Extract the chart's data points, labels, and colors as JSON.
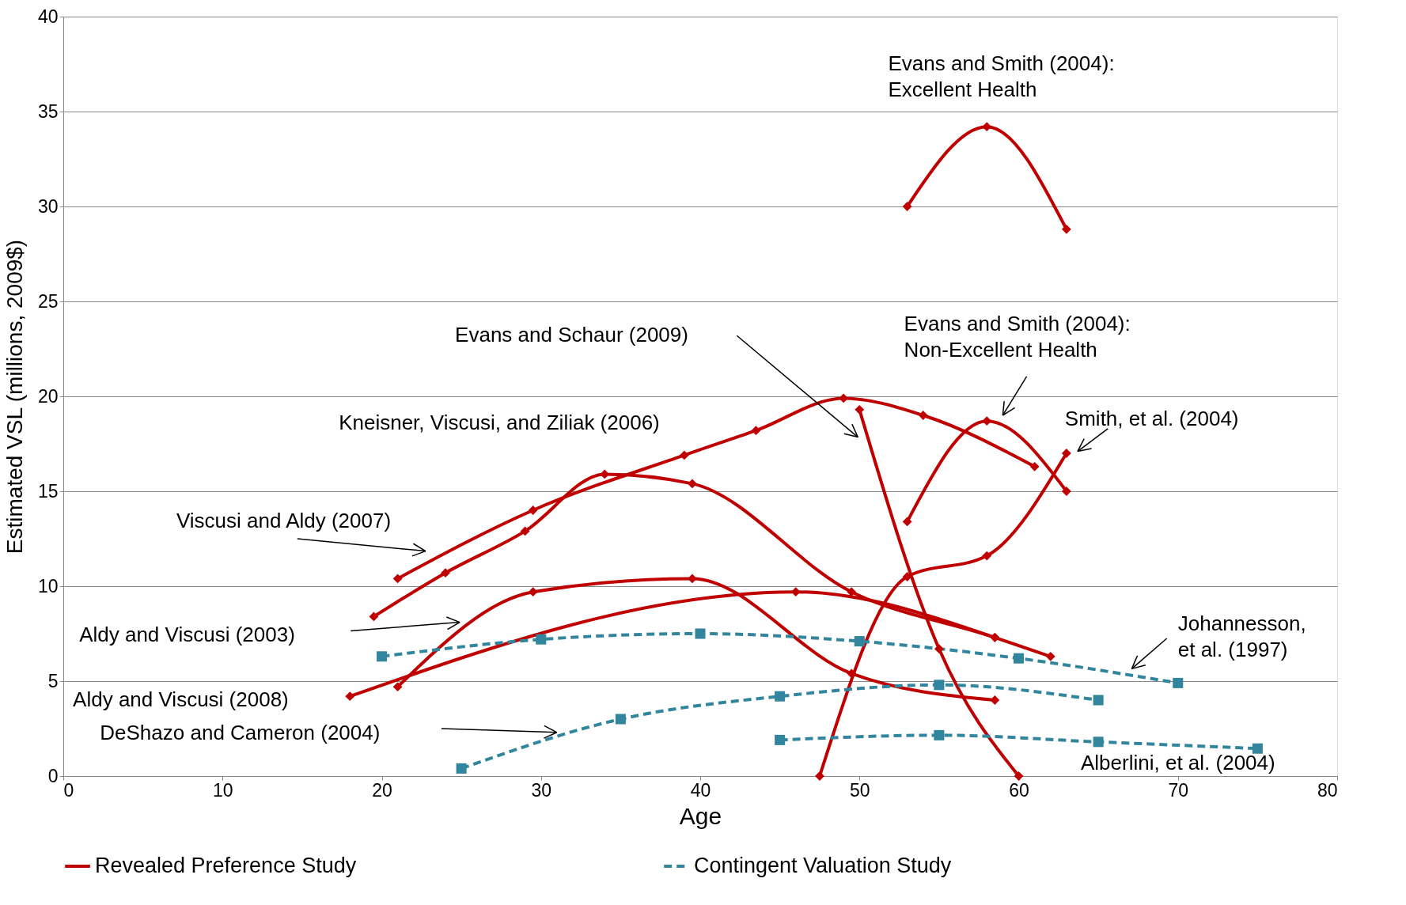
{
  "chart_data": {
    "type": "line",
    "xlabel": "Age",
    "ylabel": "Estimated VSL (millions, 2009$)",
    "xlim": [
      0,
      80
    ],
    "xticks": [
      0,
      10,
      20,
      30,
      40,
      50,
      60,
      70,
      80
    ],
    "ylim": [
      0,
      40
    ],
    "yticks": [
      0,
      5,
      10,
      15,
      20,
      25,
      30,
      35,
      40
    ],
    "grid": "y",
    "legend": "bottom",
    "series": [
      {
        "name": "Revealed Preference Study",
        "color": "#c00000",
        "marker": "diamond",
        "line_style": "solid",
        "x": [
          53,
          58,
          63
        ],
        "values": [
          30.0,
          34.2,
          28.8
        ]
      },
      {
        "color": "#c00000",
        "marker": "diamond",
        "line_style": "solid",
        "x": [
          21,
          29.5,
          39,
          43.5,
          49,
          54,
          61
        ],
        "values": [
          10.4,
          14.0,
          16.9,
          18.2,
          19.9,
          19.0,
          16.3
        ]
      },
      {
        "color": "#c00000",
        "marker": "diamond",
        "line_style": "solid",
        "x": [
          19.5,
          24,
          29,
          34,
          39.5,
          49.5,
          58.5,
          62
        ],
        "values": [
          8.4,
          10.7,
          12.9,
          15.9,
          15.4,
          9.7,
          7.3,
          6.3
        ]
      },
      {
        "color": "#c00000",
        "marker": "diamond",
        "line_style": "solid",
        "x": [
          21,
          29.5,
          39.5,
          49.5,
          58.5
        ],
        "values": [
          4.7,
          9.7,
          10.4,
          5.4,
          4.0
        ]
      },
      {
        "color": "#c00000",
        "marker": "diamond",
        "line_style": "solid",
        "x": [
          18,
          46,
          58.5
        ],
        "values": [
          4.2,
          9.7,
          7.3
        ]
      },
      {
        "color": "#c00000",
        "marker": "diamond",
        "line_style": "solid",
        "x": [
          50,
          55,
          60
        ],
        "values": [
          19.3,
          6.7,
          0
        ]
      },
      {
        "color": "#c00000",
        "marker": "diamond",
        "line_style": "solid",
        "x": [
          47.5,
          53,
          58,
          63
        ],
        "values": [
          0,
          10.5,
          11.6,
          17.0
        ]
      },
      {
        "color": "#c00000",
        "marker": "diamond",
        "line_style": "solid",
        "x": [
          53,
          58,
          63
        ],
        "values": [
          13.4,
          18.7,
          15.0
        ]
      },
      {
        "name": "Contingent Valuation Study",
        "color": "#31859c",
        "marker": "square",
        "line_style": "dashed",
        "x": [
          20,
          30,
          40,
          50,
          60,
          70
        ],
        "values": [
          6.3,
          7.2,
          7.5,
          7.1,
          6.2,
          4.9
        ]
      },
      {
        "color": "#31859c",
        "marker": "square",
        "line_style": "dashed",
        "x": [
          25,
          35,
          45,
          55,
          65
        ],
        "values": [
          0.4,
          3.0,
          4.2,
          4.8,
          4.0
        ]
      },
      {
        "color": "#31859c",
        "marker": "square",
        "line_style": "dashed",
        "x": [
          45,
          55,
          65,
          75
        ],
        "values": [
          1.9,
          2.15,
          1.8,
          1.45
        ]
      }
    ],
    "annotations": [
      "Evans and Smith (2004):\nExcellent Health",
      "Evans and Schaur (2009)",
      "Evans and Smith (2004):\nNon-Excellent Health",
      "Kneisner, Viscusi, and Ziliak (2006)",
      "Smith, et al. (2004)",
      "Viscusi and Aldy (2007)",
      "Aldy and Viscusi (2003)",
      "Johannesson,\net al. (1997)",
      "Aldy and Viscusi (2008)",
      "DeShazo and Cameron (2004)",
      "Alberlini, et al. (2004)"
    ]
  }
}
